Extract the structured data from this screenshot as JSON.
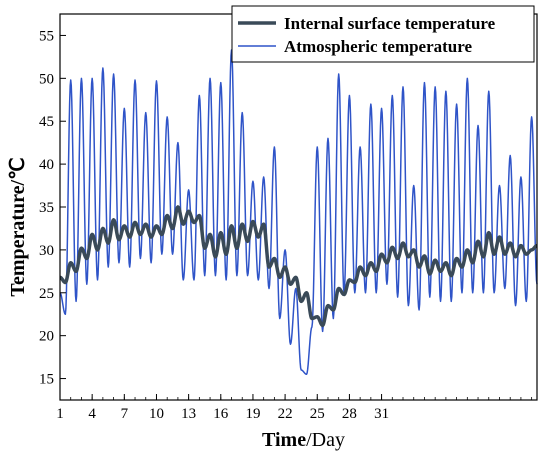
{
  "chart_data": {
    "type": "line",
    "xlabel": {
      "bold": "Time",
      "rest": "/Day"
    },
    "ylabel": "Temperature/℃",
    "xlim": [
      1,
      45.5
    ],
    "ylim": [
      12.5,
      57.5
    ],
    "x_ticks": [
      1,
      4,
      7,
      10,
      13,
      16,
      19,
      22,
      25,
      28,
      31
    ],
    "y_ticks": [
      15,
      20,
      25,
      30,
      35,
      40,
      45,
      50,
      55
    ],
    "legend_position": "top-right",
    "series": [
      {
        "name": "Internal surface temperature",
        "color": "#3a4a58",
        "line_width": 3.5,
        "daily_points": {
          "x": [
            1,
            1.5,
            2,
            2.5,
            3,
            3.5,
            4,
            4.5,
            5,
            5.5,
            6,
            6.5,
            7,
            7.5,
            8,
            8.5,
            9,
            9.5,
            10,
            10.5,
            11,
            11.5,
            12,
            12.5,
            13,
            13.5,
            14,
            14.5,
            15,
            15.5,
            16,
            16.5,
            17,
            17.5,
            18,
            18.5,
            19,
            19.5,
            20,
            20.5,
            21,
            21.5,
            22,
            22.5,
            23,
            23.5,
            24,
            24.5,
            25,
            25.5,
            26,
            26.5,
            27,
            27.5,
            28,
            28.5,
            29,
            29.5,
            30,
            30.5,
            31,
            31.5,
            32,
            32.5,
            33,
            33.5,
            34,
            34.5,
            35,
            35.5,
            36,
            36.5,
            37,
            37.5,
            38,
            38.5,
            39,
            39.5,
            40,
            40.5,
            41,
            41.5,
            42,
            42.5,
            43,
            43.5,
            44,
            44.5,
            45,
            45.5
          ],
          "y": [
            26.8,
            26.2,
            28.5,
            27.5,
            30.2,
            29.0,
            31.8,
            30.0,
            32.5,
            30.8,
            33.5,
            31.2,
            32.8,
            31.5,
            33.2,
            31.8,
            33.0,
            31.5,
            32.8,
            31.8,
            34.0,
            32.5,
            35.0,
            33.0,
            34.5,
            33.2,
            34.0,
            30.2,
            31.8,
            29.2,
            32.0,
            29.5,
            32.8,
            30.2,
            33.0,
            31.0,
            33.3,
            31.5,
            33.0,
            28.0,
            29.0,
            26.8,
            28.0,
            26.0,
            26.8,
            24.0,
            25.0,
            22.0,
            22.2,
            21.2,
            23.5,
            23.0,
            25.5,
            24.8,
            26.5,
            26.2,
            28.0,
            27.0,
            28.5,
            27.5,
            29.5,
            28.5,
            30.3,
            29.0,
            30.8,
            29.2,
            30.0,
            28.0,
            29.3,
            27.2,
            28.8,
            27.5,
            28.5,
            27.0,
            29.0,
            28.0,
            30.0,
            28.5,
            31.0,
            29.2,
            32.0,
            29.5,
            31.5,
            29.5,
            30.8,
            29.2,
            30.5,
            29.5,
            30.0,
            30.5
          ]
        }
      },
      {
        "name": "Atmospheric temperature",
        "color": "#2f54c8",
        "line_width": 1.5,
        "daily_points": {
          "x": [
            1,
            1.5,
            2,
            2.5,
            3,
            3.5,
            4,
            4.5,
            5,
            5.5,
            6,
            6.5,
            7,
            7.5,
            8,
            8.5,
            9,
            9.5,
            10,
            10.5,
            11,
            11.5,
            12,
            12.5,
            13,
            13.5,
            14,
            14.5,
            15,
            15.5,
            16,
            16.5,
            17,
            17.5,
            18,
            18.5,
            19,
            19.5,
            20,
            20.5,
            21,
            21.5,
            22,
            22.5,
            23,
            23.5,
            24,
            24.5,
            25,
            25.5,
            26,
            26.5,
            27,
            27.5,
            28,
            28.5,
            29,
            29.5,
            30,
            30.5,
            31,
            31.5,
            32,
            32.5,
            33,
            33.5,
            34,
            34.5,
            35,
            35.5,
            36,
            36.5,
            37,
            37.5,
            38,
            38.5,
            39,
            39.5,
            40,
            40.5,
            41,
            41.5,
            42,
            42.5,
            43,
            43.5,
            44,
            44.5,
            45,
            45.5
          ],
          "y": [
            25.0,
            22.5,
            49.8,
            24.0,
            50.0,
            26.0,
            50.0,
            26.5,
            51.2,
            28.0,
            50.5,
            28.5,
            46.5,
            28.0,
            49.8,
            29.0,
            46.0,
            28.5,
            49.7,
            29.5,
            45.5,
            29.5,
            42.5,
            26.5,
            37.0,
            26.5,
            48.0,
            27.0,
            50.0,
            27.0,
            49.5,
            26.5,
            53.3,
            27.0,
            46.0,
            27.0,
            38.0,
            26.5,
            38.5,
            25.5,
            42.0,
            22.0,
            30.0,
            19.0,
            25.5,
            16.0,
            15.5,
            21.0,
            42.0,
            20.5,
            43.0,
            22.0,
            50.5,
            25.0,
            48.0,
            25.0,
            42.0,
            25.0,
            47.0,
            25.0,
            46.5,
            26.0,
            48.0,
            24.5,
            49.0,
            23.5,
            37.5,
            23.0,
            49.5,
            24.5,
            49.0,
            24.0,
            48.5,
            24.0,
            47.0,
            25.0,
            50.0,
            25.0,
            44.5,
            25.0,
            48.5,
            25.0,
            37.5,
            25.5,
            41.0,
            23.5,
            38.5,
            24.0,
            45.5,
            26.0
          ]
        }
      }
    ]
  }
}
